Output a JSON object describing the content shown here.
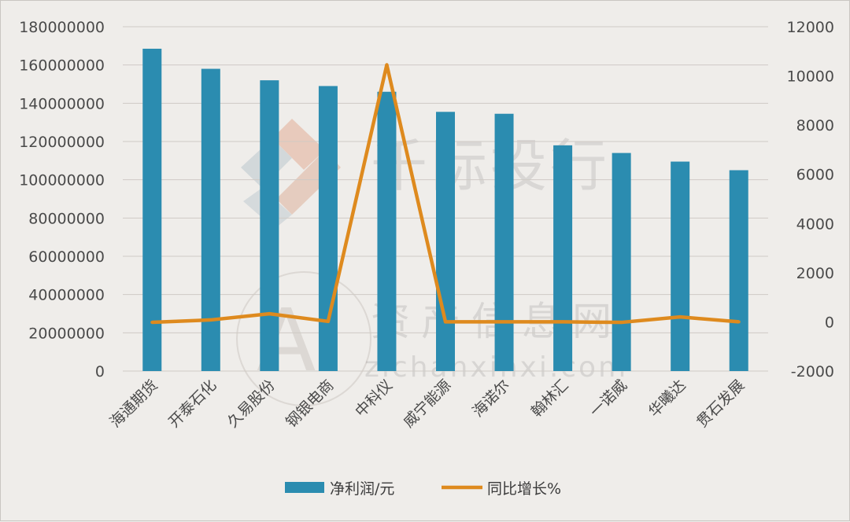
{
  "chart_data": {
    "type": "bar",
    "categories": [
      "海通期货",
      "开泰石化",
      "久易股份",
      "钢银电商",
      "中科仪",
      "威宁能源",
      "海诺尔",
      "翰林汇",
      "一诺威",
      "华曦达",
      "贯石发展"
    ],
    "series": [
      {
        "name": "净利润/元",
        "type": "bar",
        "axis": "left",
        "color": "#2b8cb0",
        "values": [
          168500000,
          158000000,
          152000000,
          149000000,
          146000000,
          135500000,
          134500000,
          118000000,
          114000000,
          109500000,
          105000000
        ]
      },
      {
        "name": "同比增长%",
        "type": "line",
        "axis": "right",
        "color": "#de8a1e",
        "values": [
          -20,
          80,
          330,
          20,
          10450,
          0,
          0,
          0,
          -20,
          200,
          0
        ]
      }
    ],
    "y_left": {
      "ylim": [
        0,
        180000000
      ],
      "ticks": [
        "0",
        "20000000",
        "40000000",
        "60000000",
        "80000000",
        "100000000",
        "120000000",
        "140000000",
        "160000000",
        "180000000"
      ]
    },
    "y_right": {
      "ylim": [
        -2000,
        12000
      ],
      "ticks": [
        "-2000",
        "0",
        "2000",
        "4000",
        "6000",
        "8000",
        "10000",
        "12000"
      ]
    },
    "grid": true,
    "legend": "bottom-center"
  },
  "watermark": {
    "brand": "千际投行",
    "sub": "资产信息网",
    "domain": "zichanxinxi.com",
    "logo_letters": "AI"
  }
}
